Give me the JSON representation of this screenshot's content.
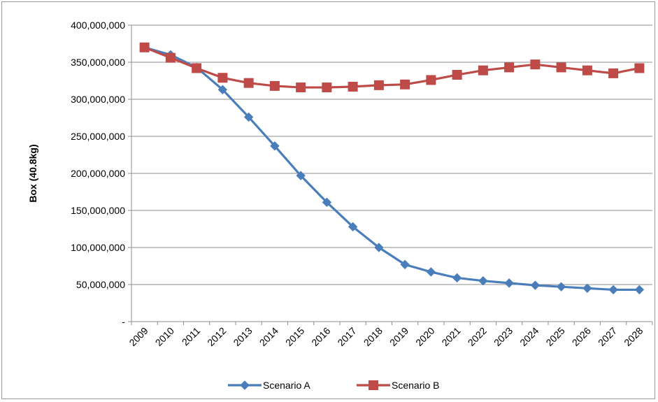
{
  "chart_data": {
    "type": "line",
    "title": "",
    "xlabel": "",
    "ylabel": "Box (40.8kg)",
    "ylim": [
      0,
      400000000
    ],
    "y_ticks": [
      {
        "value": 0,
        "label": "-"
      },
      {
        "value": 50000000,
        "label": "50,000,000"
      },
      {
        "value": 100000000,
        "label": "100,000,000"
      },
      {
        "value": 150000000,
        "label": "150,000,000"
      },
      {
        "value": 200000000,
        "label": "200,000,000"
      },
      {
        "value": 250000000,
        "label": "250,000,000"
      },
      {
        "value": 300000000,
        "label": "300,000,000"
      },
      {
        "value": 350000000,
        "label": "350,000,000"
      },
      {
        "value": 400000000,
        "label": "400,000,000"
      }
    ],
    "grid": true,
    "legend": "bottom",
    "categories": [
      "2009",
      "2010",
      "2011",
      "2012",
      "2013",
      "2014",
      "2015",
      "2016",
      "2017",
      "2018",
      "2019",
      "2020",
      "2021",
      "2022",
      "2023",
      "2024",
      "2025",
      "2026",
      "2027",
      "2028"
    ],
    "series": [
      {
        "name": "Scenario A",
        "color": "#4a7ebb",
        "marker": "diamond",
        "values": [
          370000000,
          360000000,
          343000000,
          313000000,
          276000000,
          237000000,
          197000000,
          161000000,
          128000000,
          100000000,
          77000000,
          67000000,
          59000000,
          55000000,
          52000000,
          49000000,
          47000000,
          45000000,
          43000000,
          43000000
        ]
      },
      {
        "name": "Scenario B",
        "color": "#be4b48",
        "marker": "square",
        "values": [
          370000000,
          356000000,
          342000000,
          329000000,
          322000000,
          318000000,
          316000000,
          316000000,
          317000000,
          319000000,
          320000000,
          326000000,
          333000000,
          339000000,
          343000000,
          347000000,
          343000000,
          339000000,
          335000000,
          342000000
        ]
      }
    ]
  }
}
